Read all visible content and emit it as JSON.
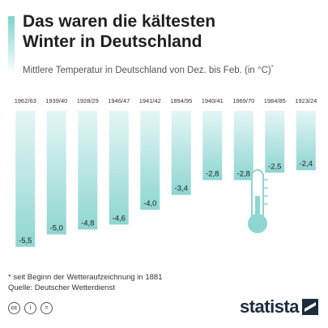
{
  "title_line1": "Das waren die kältesten",
  "title_line2": "Winter in Deutschland",
  "subtitle": "Mittlere Temperatur in Deutschland von Dez. bis Feb. (in °C)",
  "subtitle_mark": "*",
  "footnote": "* seit Beginn der Wetteraufzeichnung in 1881",
  "source": "Quelle: Deutscher Wetterdienst",
  "brand": "statista",
  "icons": [
    "cc-icon",
    "person-icon",
    "equals-icon",
    "thermometer-icon",
    "statista-logo-icon"
  ],
  "colors": {
    "bar_top": "#d6f1ef",
    "bar_bottom": "#8ed6d2",
    "title_accent": "#7fd3cf"
  },
  "chart_data": {
    "type": "bar",
    "orientation": "vertical-downward",
    "categories": [
      "1962/63",
      "1939/40",
      "1928/29",
      "1946/47",
      "1941/42",
      "1894/95",
      "1940/41",
      "1969/70",
      "1984/85",
      "1923/24"
    ],
    "values": [
      -5.5,
      -5.0,
      -4.8,
      -4.6,
      -4.0,
      -3.4,
      -2.8,
      -2.8,
      -2.5,
      -2.4
    ],
    "labels": [
      "-5,5",
      "-5,0",
      "-4,8",
      "-4,6",
      "-4,0",
      "-3,4",
      "-2,8",
      "-2,8",
      "-2,5",
      "-2,4"
    ],
    "ylim": [
      -6,
      0
    ],
    "grid": false
  }
}
